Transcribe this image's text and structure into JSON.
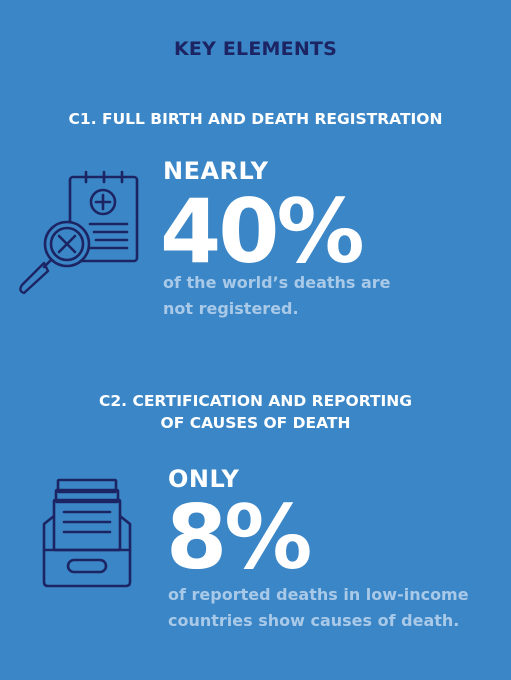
{
  "header": {
    "title": "KEY ELEMENTS"
  },
  "section1": {
    "heading": "C1. FULL BIRTH AND DEATH REGISTRATION",
    "lead": "NEARLY",
    "stat": "40%",
    "desc_line1": "of the world’s deaths are",
    "desc_line2": "not registered.",
    "icon": "document-magnifier-icon"
  },
  "section2": {
    "heading_line1": "C2. CERTIFICATION AND REPORTING",
    "heading_line2": "OF CAUSES OF DEATH",
    "lead": "ONLY",
    "stat": "8%",
    "desc_line1": "of reported deaths in low-income",
    "desc_line2": "countries show causes of death.",
    "icon": "file-drawer-icon"
  },
  "colors": {
    "background": "#3b86c6",
    "title": "#1c2463",
    "icon_stroke": "#1c2463",
    "description": "#a9c9e8",
    "text": "#ffffff"
  }
}
